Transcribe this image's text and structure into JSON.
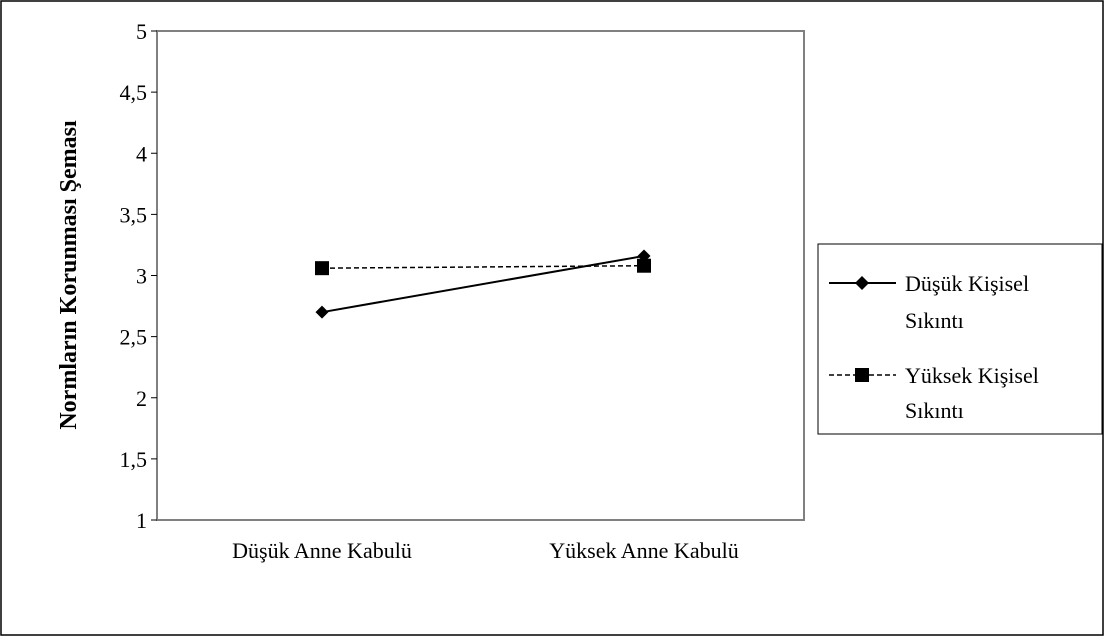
{
  "chart_data": {
    "type": "line",
    "title": "",
    "xlabel": "",
    "ylabel": "Normların Korunması Şeması",
    "categories": [
      "Düşük Anne Kabulü",
      "Yüksek Anne Kabulü"
    ],
    "ylim": [
      1,
      5
    ],
    "yticks": [
      "1",
      "1,5",
      "2",
      "2,5",
      "3",
      "3,5",
      "4",
      "4,5",
      "5"
    ],
    "grid": false,
    "legend_position": "right",
    "series": [
      {
        "name_lines": [
          "Düşük Kişisel",
          "Sıkıntı"
        ],
        "values": [
          2.7,
          3.16
        ],
        "marker": "diamond",
        "line_style": "solid",
        "color": "#000000"
      },
      {
        "name_lines": [
          "Yüksek Kişisel",
          "Sıkıntı"
        ],
        "values": [
          3.06,
          3.08
        ],
        "marker": "square",
        "line_style": "dashed",
        "color": "#000000"
      }
    ]
  }
}
